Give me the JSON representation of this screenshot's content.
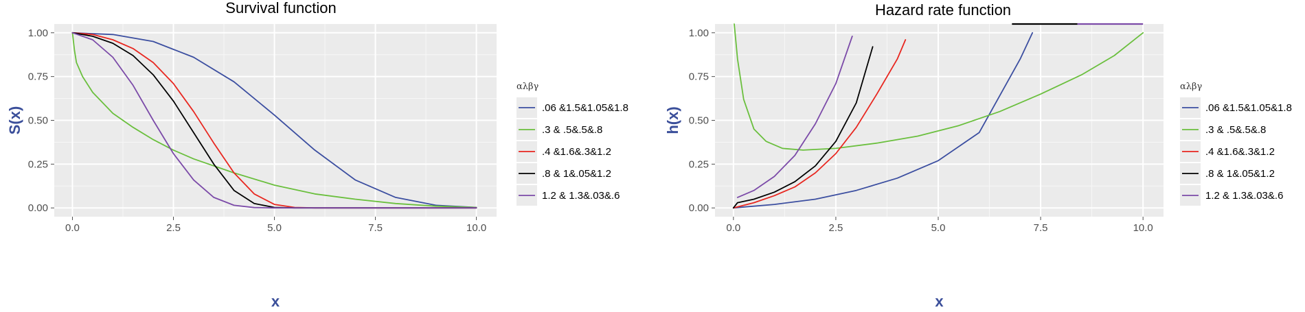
{
  "chart_data": [
    {
      "type": "line",
      "title": "Survival function",
      "xlabel": "x",
      "ylabel": "S(x)",
      "xlim": [
        -0.45,
        10.5
      ],
      "ylim": [
        -0.05,
        1.05
      ],
      "x_ticks": [
        "0.0",
        "2.5",
        "5.0",
        "7.5",
        "10.0"
      ],
      "y_ticks": [
        "0.00",
        "0.25",
        "0.50",
        "0.75",
        "1.00"
      ],
      "grid": true,
      "legend_title": "αλβγ",
      "legend_position": "right",
      "series": [
        {
          "name": ".06 &1.5&1.05&1.8",
          "color": "#3b4ea0",
          "points": [
            [
              0,
              1.0
            ],
            [
              1,
              0.99
            ],
            [
              2,
              0.95
            ],
            [
              3,
              0.86
            ],
            [
              4,
              0.72
            ],
            [
              5,
              0.53
            ],
            [
              6,
              0.33
            ],
            [
              7,
              0.16
            ],
            [
              8,
              0.06
            ],
            [
              9,
              0.015
            ],
            [
              10,
              0.003
            ]
          ]
        },
        {
          "name": ".3 & .5&.5&.8",
          "color": "#6abf3d",
          "points": [
            [
              0,
              1.0
            ],
            [
              0.05,
              0.9
            ],
            [
              0.1,
              0.83
            ],
            [
              0.25,
              0.75
            ],
            [
              0.5,
              0.66
            ],
            [
              1,
              0.54
            ],
            [
              1.5,
              0.46
            ],
            [
              2,
              0.39
            ],
            [
              2.5,
              0.33
            ],
            [
              3,
              0.28
            ],
            [
              4,
              0.2
            ],
            [
              5,
              0.13
            ],
            [
              6,
              0.08
            ],
            [
              7,
              0.05
            ],
            [
              8,
              0.025
            ],
            [
              9,
              0.01
            ],
            [
              10,
              0.003
            ]
          ]
        },
        {
          "name": ".4 &1.6&.3&1.2",
          "color": "#e8261f",
          "points": [
            [
              0,
              1.0
            ],
            [
              0.5,
              0.99
            ],
            [
              1,
              0.96
            ],
            [
              1.5,
              0.91
            ],
            [
              2,
              0.83
            ],
            [
              2.5,
              0.71
            ],
            [
              3,
              0.55
            ],
            [
              3.5,
              0.37
            ],
            [
              4,
              0.2
            ],
            [
              4.5,
              0.08
            ],
            [
              5,
              0.02
            ],
            [
              5.5,
              0.003
            ],
            [
              6,
              0.0
            ],
            [
              10,
              0.0
            ]
          ]
        },
        {
          "name": ".8 & 1&.05&1.2",
          "color": "#000000",
          "points": [
            [
              0,
              1.0
            ],
            [
              0.5,
              0.98
            ],
            [
              1,
              0.94
            ],
            [
              1.5,
              0.87
            ],
            [
              2,
              0.76
            ],
            [
              2.5,
              0.61
            ],
            [
              3,
              0.43
            ],
            [
              3.5,
              0.25
            ],
            [
              4,
              0.1
            ],
            [
              4.5,
              0.025
            ],
            [
              5,
              0.003
            ],
            [
              5.5,
              0.0
            ],
            [
              10,
              0.0
            ]
          ]
        },
        {
          "name": "1.2 & 1.3&.03&.6",
          "color": "#7b4aa8",
          "points": [
            [
              0,
              1.0
            ],
            [
              0.5,
              0.96
            ],
            [
              1,
              0.86
            ],
            [
              1.5,
              0.7
            ],
            [
              2,
              0.5
            ],
            [
              2.5,
              0.31
            ],
            [
              3,
              0.16
            ],
            [
              3.5,
              0.06
            ],
            [
              4,
              0.015
            ],
            [
              4.5,
              0.002
            ],
            [
              5,
              0.0
            ],
            [
              10,
              0.0
            ]
          ]
        }
      ]
    },
    {
      "type": "line",
      "title": "Hazard rate function",
      "xlabel": "x",
      "ylabel": "h(x)",
      "xlim": [
        -0.45,
        10.5
      ],
      "ylim": [
        -0.05,
        1.05
      ],
      "x_ticks": [
        "0.0",
        "2.5",
        "5.0",
        "7.5",
        "10.0"
      ],
      "y_ticks": [
        "0.00",
        "0.25",
        "0.50",
        "0.75",
        "1.00"
      ],
      "grid": true,
      "legend_title": "αλβγ",
      "legend_position": "right",
      "series": [
        {
          "name": ".06 &1.5&1.05&1.8",
          "color": "#3b4ea0",
          "points": [
            [
              0,
              0.0
            ],
            [
              1,
              0.02
            ],
            [
              2,
              0.05
            ],
            [
              3,
              0.1
            ],
            [
              4,
              0.17
            ],
            [
              5,
              0.27
            ],
            [
              6,
              0.43
            ],
            [
              7,
              0.85
            ],
            [
              7.3,
              1.0
            ]
          ]
        },
        {
          "name": ".3 & .5&.5&.8",
          "color": "#6abf3d",
          "points": [
            [
              0.02,
              1.05
            ],
            [
              0.1,
              0.85
            ],
            [
              0.25,
              0.62
            ],
            [
              0.5,
              0.45
            ],
            [
              0.8,
              0.38
            ],
            [
              1.2,
              0.34
            ],
            [
              1.7,
              0.33
            ],
            [
              2.5,
              0.34
            ],
            [
              3.5,
              0.37
            ],
            [
              4.5,
              0.41
            ],
            [
              5.5,
              0.47
            ],
            [
              6.5,
              0.55
            ],
            [
              7.5,
              0.65
            ],
            [
              8.5,
              0.76
            ],
            [
              9.3,
              0.87
            ],
            [
              10,
              1.0
            ]
          ]
        },
        {
          "name": ".4 &1.6&.3&1.2",
          "color": "#e8261f",
          "points": [
            [
              0,
              0.0
            ],
            [
              0.5,
              0.03
            ],
            [
              1,
              0.07
            ],
            [
              1.5,
              0.12
            ],
            [
              2,
              0.2
            ],
            [
              2.5,
              0.31
            ],
            [
              3,
              0.46
            ],
            [
              3.5,
              0.65
            ],
            [
              4,
              0.85
            ],
            [
              4.2,
              0.96
            ]
          ]
        },
        {
          "name": ".8 & 1&.05&1.2",
          "color": "#000000",
          "points": [
            [
              0,
              0.0
            ],
            [
              0.1,
              0.03
            ],
            [
              0.5,
              0.05
            ],
            [
              1,
              0.09
            ],
            [
              1.5,
              0.15
            ],
            [
              2,
              0.24
            ],
            [
              2.5,
              0.38
            ],
            [
              3,
              0.6
            ],
            [
              3.4,
              0.92
            ]
          ]
        },
        {
          "name": "1.2 & 1.3&.03&.6",
          "color": "#7b4aa8",
          "points": [
            [
              0.1,
              0.06
            ],
            [
              0.5,
              0.1
            ],
            [
              1,
              0.18
            ],
            [
              1.5,
              0.3
            ],
            [
              2,
              0.48
            ],
            [
              2.5,
              0.71
            ],
            [
              2.9,
              0.98
            ]
          ]
        }
      ],
      "top_bars": [
        {
          "color": "#000000",
          "x0": 6.8,
          "x1": 8.4,
          "y": 1.05
        },
        {
          "color": "#7b4aa8",
          "x0": 8.4,
          "x1": 10.0,
          "y": 1.05
        }
      ]
    }
  ]
}
